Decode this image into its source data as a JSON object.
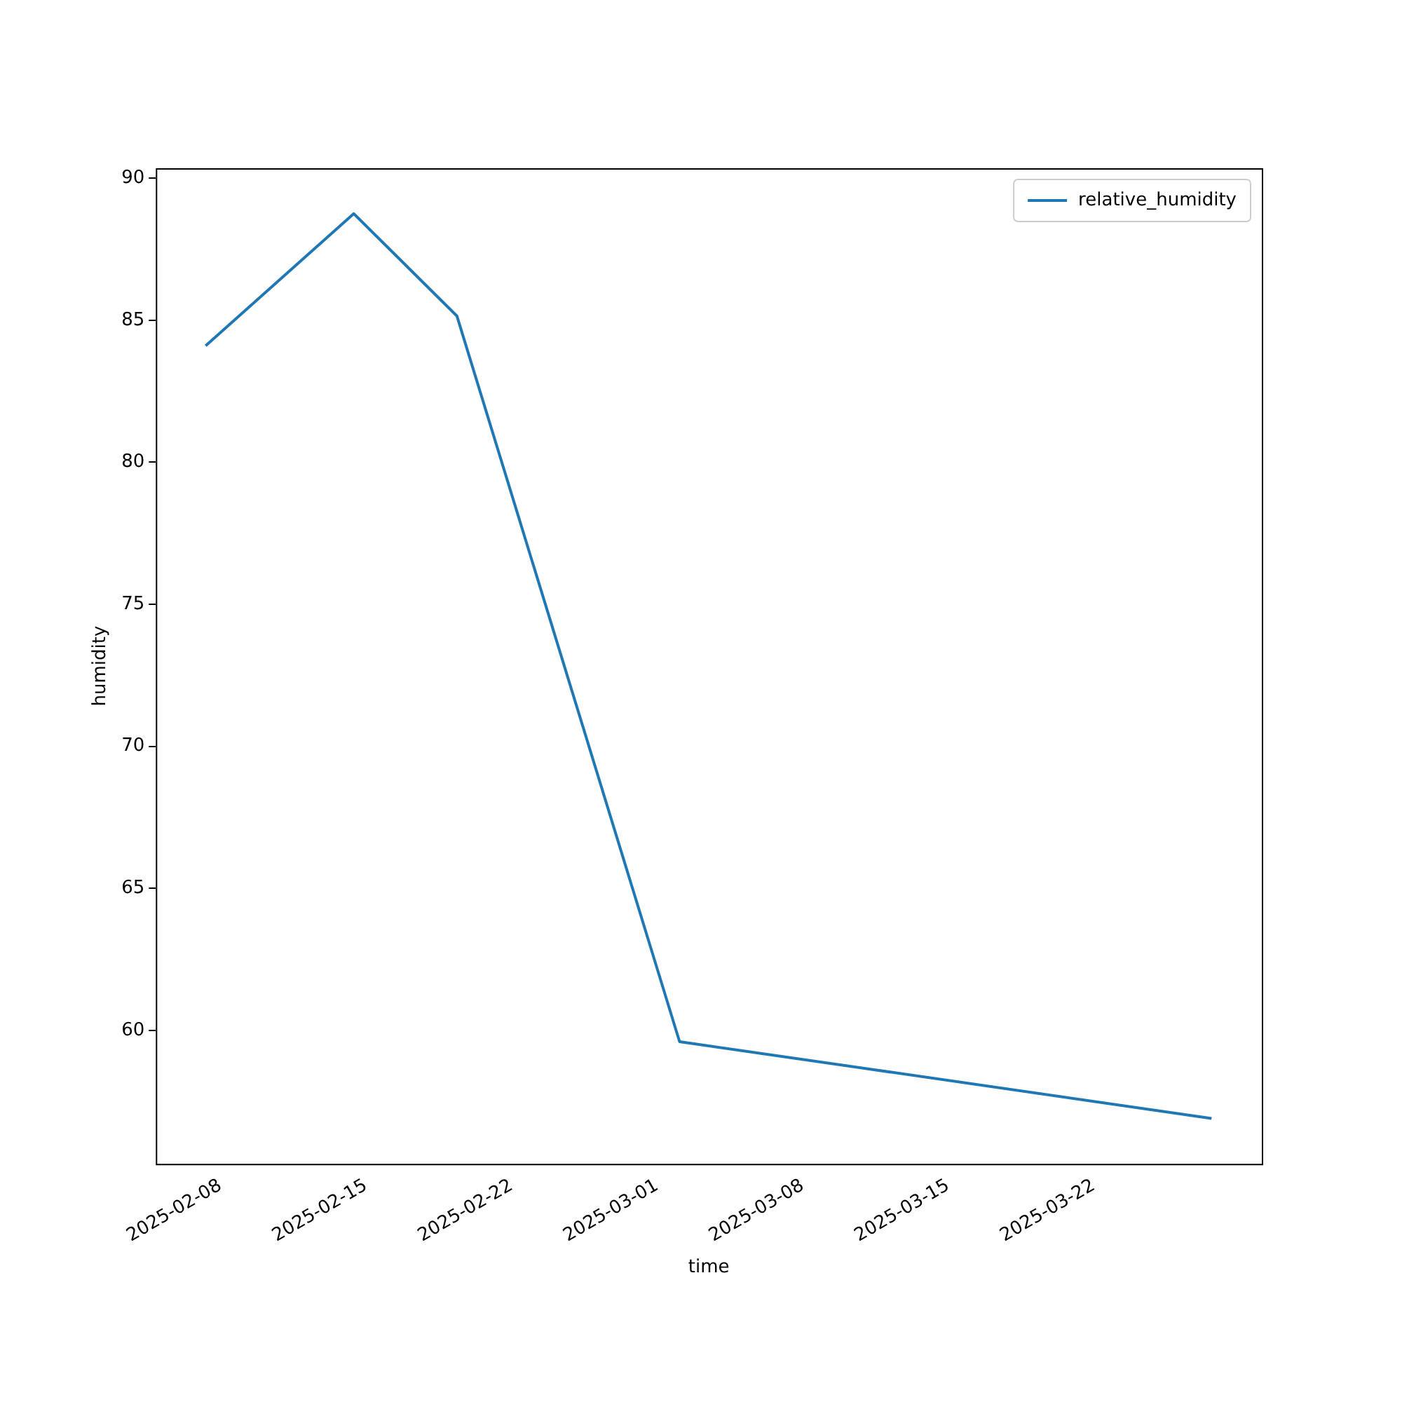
{
  "chart_data": {
    "type": "line",
    "xlabel": "time",
    "ylabel": "humidity",
    "x": [
      "2025-02-07T07:00",
      "2025-02-14T10:00",
      "2025-02-19T09:00",
      "2025-03-02T02:00",
      "2025-03-27T16:00"
    ],
    "series": [
      {
        "name": "relative_humidity",
        "color": "#1f77b4",
        "values": [
          84.1,
          88.75,
          85.15,
          59.6,
          56.9
        ]
      }
    ],
    "xlim": [
      "2025-02-04T21:30",
      "2025-03-30T02:00"
    ],
    "xticks": [
      "2025-02-08",
      "2025-02-15",
      "2025-02-22",
      "2025-03-01",
      "2025-03-08",
      "2025-03-15",
      "2025-03-22"
    ],
    "ylim": [
      55.3,
      90.35
    ],
    "yticks": [
      60,
      65,
      70,
      75,
      80,
      85,
      90
    ],
    "grid": false,
    "legend": "top right",
    "marker": "none",
    "line_style": "solid"
  }
}
